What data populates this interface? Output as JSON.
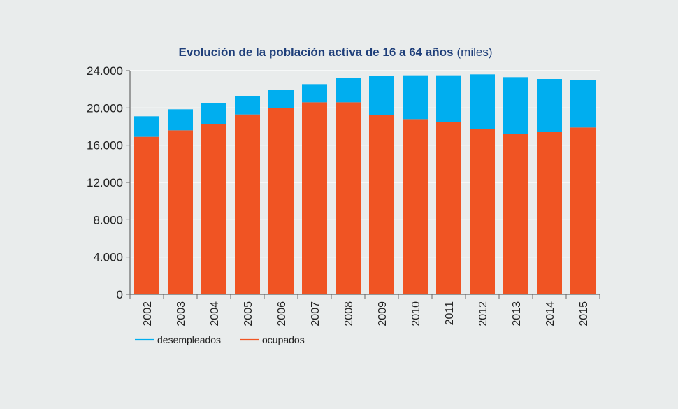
{
  "chart_data": {
    "type": "bar",
    "stacked": true,
    "title": "Evolución de la población activa de 16 a 64 años",
    "title_unit": "(miles)",
    "xlabel": "",
    "ylabel": "",
    "ylim": [
      0,
      24000
    ],
    "yticks": [
      0,
      4000,
      8000,
      12000,
      16000,
      20000,
      24000
    ],
    "ytick_labels": [
      "0",
      "4.000",
      "8.000",
      "12.000",
      "16.000",
      "20.000",
      "24.000"
    ],
    "grid": true,
    "legend_position": "bottom-left",
    "categories": [
      "2002",
      "2003",
      "2004",
      "2005",
      "2006",
      "2007",
      "2008",
      "2009",
      "2010",
      "2011",
      "2012",
      "2013",
      "2014",
      "2015"
    ],
    "series": [
      {
        "name": "ocupados",
        "color": "#f05423",
        "values": [
          16900,
          17600,
          18300,
          19300,
          20000,
          20600,
          20600,
          19200,
          18800,
          18500,
          17700,
          17200,
          17400,
          17900
        ]
      },
      {
        "name": "desempleados",
        "color": "#00aeef",
        "values": [
          2200,
          2250,
          2250,
          1950,
          1900,
          1950,
          2600,
          4200,
          4700,
          5000,
          5900,
          6100,
          5700,
          5100
        ]
      }
    ],
    "legend": [
      {
        "label": "desempleados",
        "color": "#00aeef"
      },
      {
        "label": "ocupados",
        "color": "#f05423"
      }
    ]
  }
}
